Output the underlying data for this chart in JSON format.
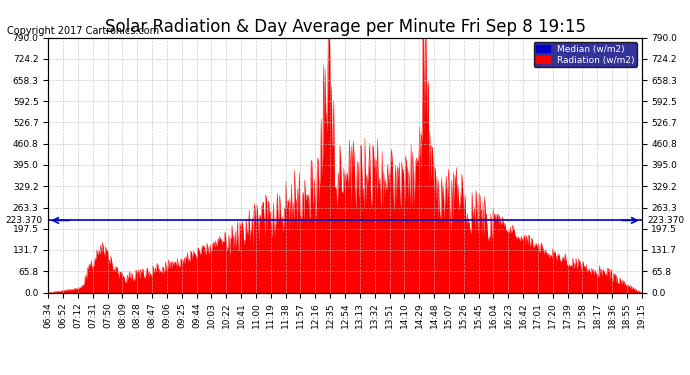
{
  "title": "Solar Radiation & Day Average per Minute Fri Sep 8 19:15",
  "copyright_text": "Copyright 2017 Cartronics.com",
  "median_value": 223.37,
  "ymin": 0.0,
  "ymax": 790.0,
  "yticks": [
    0.0,
    65.8,
    131.7,
    197.5,
    263.3,
    329.2,
    395.0,
    460.8,
    526.7,
    592.5,
    658.3,
    724.2,
    790.0
  ],
  "ytick_labels": [
    "0.0",
    "65.8",
    "131.7",
    "197.5",
    "263.3",
    "329.2",
    "395.0",
    "460.8",
    "526.7",
    "592.5",
    "658.3",
    "724.2",
    "790.0"
  ],
  "radiation_color": "#FF0000",
  "median_color": "#0000CC",
  "background_color": "#FFFFFF",
  "grid_color": "#BBBBBB",
  "title_fontsize": 12,
  "copyright_fontsize": 7,
  "tick_fontsize": 6.5,
  "legend_median_label": "Median (w/m2)",
  "legend_radiation_label": "Radiation (w/m2)",
  "median_left_label": "223.370",
  "median_right_label": "223.370",
  "x_tick_labels": [
    "06:34",
    "06:52",
    "07:12",
    "07:31",
    "07:50",
    "08:09",
    "08:28",
    "08:47",
    "09:06",
    "09:25",
    "09:44",
    "10:03",
    "10:22",
    "10:41",
    "11:00",
    "11:19",
    "11:38",
    "11:57",
    "12:16",
    "12:35",
    "12:54",
    "13:13",
    "13:32",
    "13:51",
    "14:10",
    "14:29",
    "14:48",
    "15:07",
    "15:26",
    "15:45",
    "16:04",
    "16:23",
    "16:42",
    "17:01",
    "17:20",
    "17:39",
    "17:58",
    "18:17",
    "18:36",
    "18:55",
    "19:15"
  ]
}
